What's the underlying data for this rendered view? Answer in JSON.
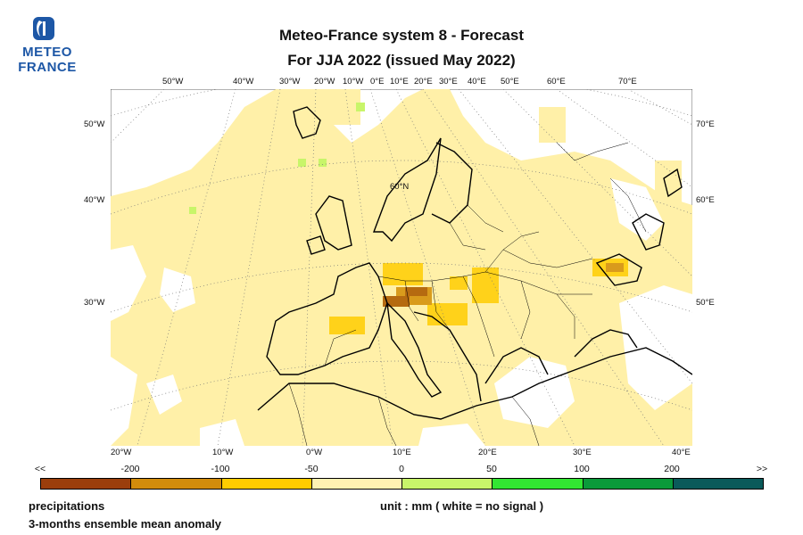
{
  "logo": {
    "line1": "METEO",
    "line2": "FRANCE"
  },
  "title": {
    "line1": "Meteo-France system 8  -  Forecast",
    "line2": "For JJA 2022      (issued May 2022)"
  },
  "map": {
    "top_lon_labels": [
      "50°W",
      "40°W",
      "30°W",
      "20°W",
      "10°W",
      "0°E",
      "10°E",
      "20°E",
      "30°E",
      "40°E",
      "50°E",
      "60°E",
      "70°E"
    ],
    "left_lat_labels": [
      "50°W",
      "40°W",
      "30°W"
    ],
    "right_lat_labels": [
      "70°E",
      "60°E",
      "50°E"
    ],
    "bottom_lon_labels": [
      "20°W",
      "10°W",
      "0°W",
      "10°E",
      "20°E",
      "30°E",
      "40°E"
    ],
    "parallel_label": "60°N"
  },
  "colorbar": {
    "ticks": [
      "<<",
      "-200",
      "-100",
      "-50",
      "0",
      "50",
      "100",
      "200",
      ">>"
    ],
    "colors": [
      "#9b3e0c",
      "#d28c0c",
      "#ffcc00",
      "#fff2b2",
      "#c8f56a",
      "#32e632",
      "#0a9a3a",
      "#0a5a5a"
    ]
  },
  "footer": {
    "variable": "precipitations",
    "description": "3-months ensemble mean anomaly",
    "unit": "unit : mm  ( white = no signal )"
  }
}
